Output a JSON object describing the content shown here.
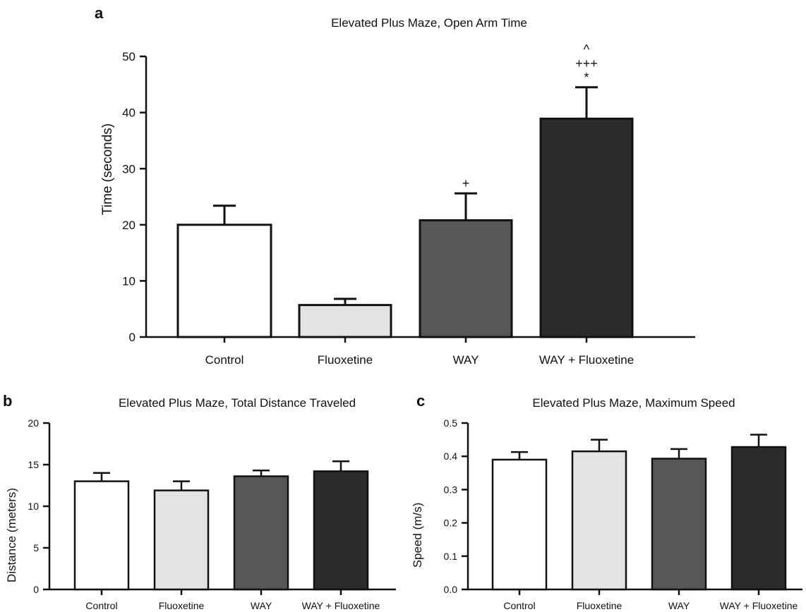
{
  "figure": {
    "panels": [
      {
        "letter": "a"
      },
      {
        "letter": "b"
      },
      {
        "letter": "c"
      }
    ]
  },
  "chart_data": [
    {
      "panel": "a",
      "type": "bar",
      "title": "Elevated Plus Maze, Open Arm Time",
      "xlabel": "",
      "ylabel": "Time (seconds)",
      "ylim": [
        0,
        50
      ],
      "yticks": [
        "0",
        "10",
        "20",
        "30",
        "40",
        "50"
      ],
      "categories": [
        "Control",
        "Fluoxetine",
        "WAY",
        "WAY + Fluoxetine"
      ],
      "values": [
        20.0,
        5.7,
        20.8,
        38.9
      ],
      "errors": [
        3.4,
        1.1,
        4.8,
        5.6
      ],
      "annotations": [
        [],
        [],
        [
          "+"
        ],
        [
          "*",
          "+++",
          "^"
        ]
      ],
      "colors": [
        "#ffffff",
        "#e2e3e5",
        "#555759",
        "#2b2b2d"
      ],
      "grid": false
    },
    {
      "panel": "b",
      "type": "bar",
      "title": "Elevated Plus Maze, Total Distance Traveled",
      "xlabel": "",
      "ylabel": "Distance (meters)",
      "ylim": [
        0,
        20
      ],
      "yticks": [
        "0",
        "5",
        "10",
        "15",
        "20"
      ],
      "categories": [
        "Control",
        "Fluoxetine",
        "WAY",
        "WAY + Fluoxetine"
      ],
      "values": [
        13.0,
        11.9,
        13.6,
        14.2
      ],
      "errors": [
        1.0,
        1.1,
        0.7,
        1.2
      ],
      "colors": [
        "#ffffff",
        "#e2e3e5",
        "#555759",
        "#2b2b2d"
      ],
      "grid": false
    },
    {
      "panel": "c",
      "type": "bar",
      "title": "Elevated Plus Maze, Maximum Speed",
      "xlabel": "",
      "ylabel": "Speed (m/s)",
      "ylim": [
        0,
        0.5
      ],
      "yticks": [
        "0.0",
        "0.1",
        "0.2",
        "0.3",
        "0.4",
        "0.5"
      ],
      "categories": [
        "Control",
        "Fluoxetine",
        "WAY",
        "WAY + Fluoxetine"
      ],
      "values": [
        0.39,
        0.415,
        0.393,
        0.428
      ],
      "errors": [
        0.023,
        0.035,
        0.029,
        0.037
      ],
      "colors": [
        "#ffffff",
        "#e2e3e5",
        "#555759",
        "#2b2b2d"
      ],
      "grid": false
    }
  ]
}
